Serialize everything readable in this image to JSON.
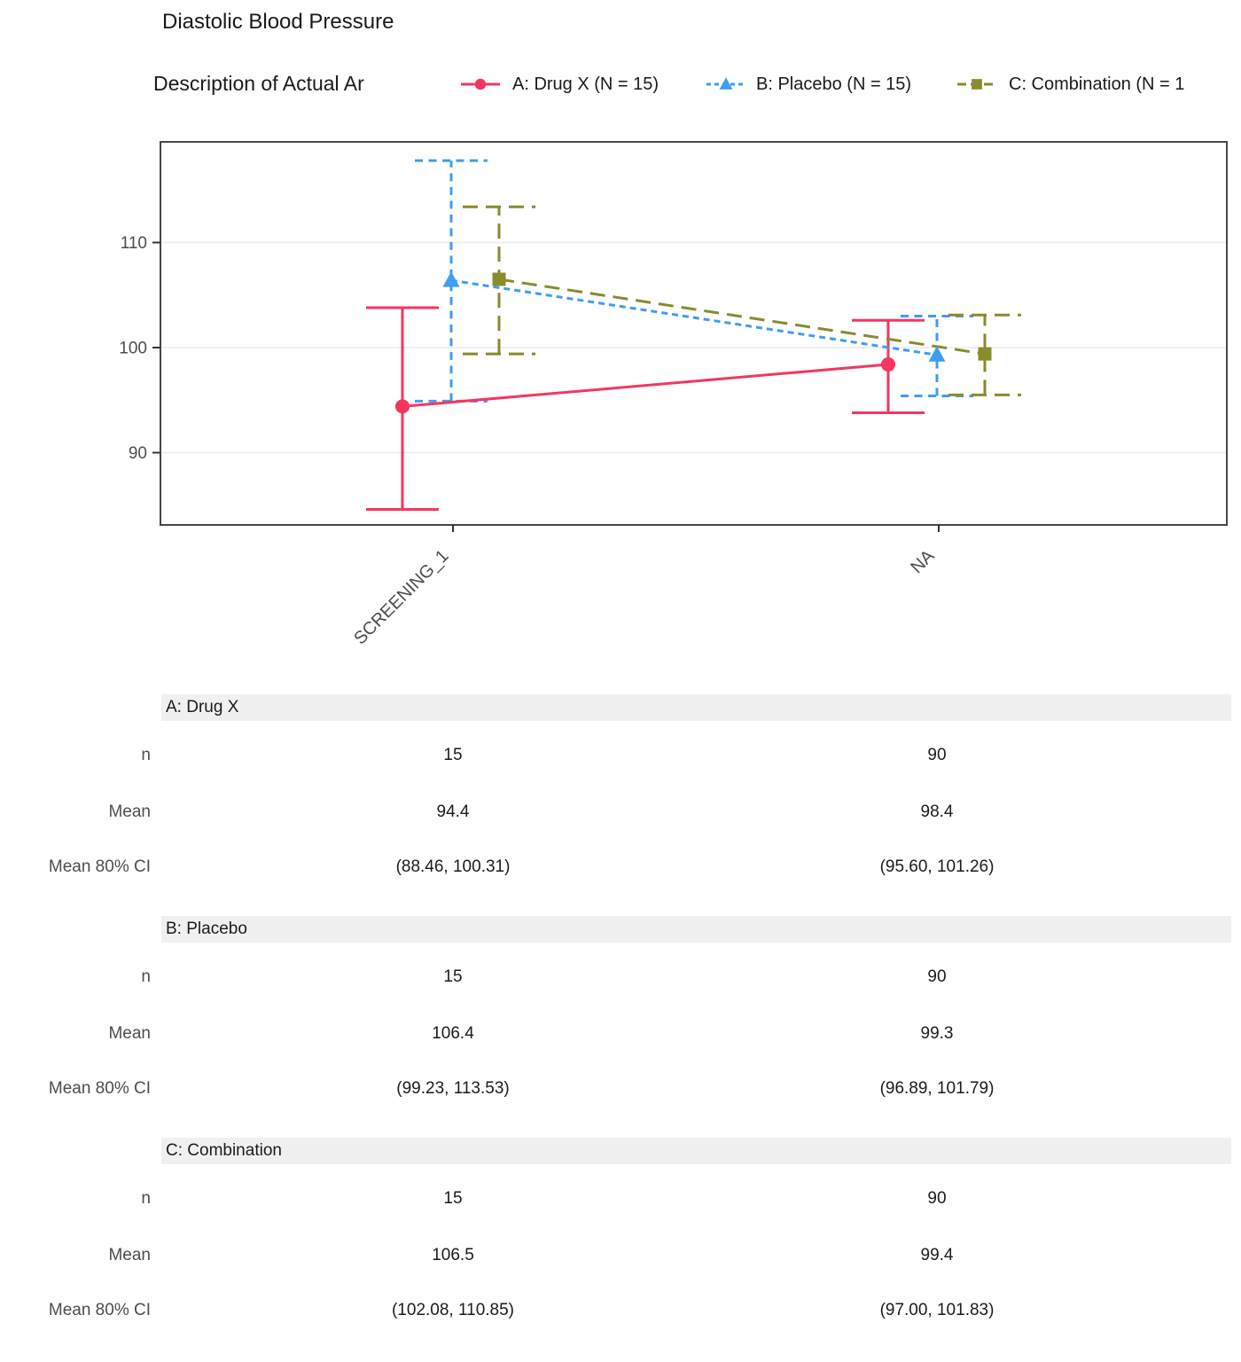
{
  "chart_data": {
    "type": "line",
    "title": "Diastolic Blood Pressure",
    "subtitle": "Description of Actual Ar",
    "x_categories": [
      "SCREENING_1",
      "NA"
    ],
    "y_ticks": [
      90,
      100,
      110
    ],
    "y_axis_range": [
      83.5,
      118.6
    ],
    "grid": "horizontal-major-only",
    "legend_position": "top",
    "series": [
      {
        "label": "A: Drug X (N = 15)",
        "color": "#f4365e",
        "marker": "circle",
        "linestyle": "solid",
        "points": [
          {
            "x": "SCREENING_1",
            "mean": 94.4,
            "bar_low": 84.6,
            "bar_high": 103.8
          },
          {
            "x": "NA",
            "mean": 98.4,
            "bar_low": 93.8,
            "bar_high": 102.6
          }
        ]
      },
      {
        "label": "B: Placebo (N = 15)",
        "color": "#3d9ef2",
        "marker": "triangle",
        "linestyle": "dotted",
        "points": [
          {
            "x": "SCREENING_1",
            "mean": 106.4,
            "bar_low": 94.9,
            "bar_high": 117.8
          },
          {
            "x": "NA",
            "mean": 99.3,
            "bar_low": 95.4,
            "bar_high": 103.0
          }
        ]
      },
      {
        "label": "C: Combination (N = 1",
        "color": "#898b2d",
        "marker": "square",
        "linestyle": "dashed",
        "points": [
          {
            "x": "SCREENING_1",
            "mean": 106.5,
            "bar_low": 99.4,
            "bar_high": 113.4
          },
          {
            "x": "NA",
            "mean": 99.4,
            "bar_low": 95.5,
            "bar_high": 103.1
          }
        ]
      }
    ]
  },
  "table": {
    "row_labels": [
      "n",
      "Mean",
      "Mean 80% CI"
    ],
    "sections": [
      {
        "header": "A: Drug X",
        "rows": [
          [
            "15",
            "90"
          ],
          [
            "94.4",
            "98.4"
          ],
          [
            "(88.46, 100.31)",
            "(95.60, 101.26)"
          ]
        ]
      },
      {
        "header": "B: Placebo",
        "rows": [
          [
            "15",
            "90"
          ],
          [
            "106.4",
            "99.3"
          ],
          [
            "(99.23, 113.53)",
            "(96.89, 101.79)"
          ]
        ]
      },
      {
        "header": "C: Combination",
        "rows": [
          [
            "15",
            "90"
          ],
          [
            "106.5",
            "99.4"
          ],
          [
            "(102.08, 110.85)",
            "(97.00, 101.83)"
          ]
        ]
      }
    ]
  }
}
